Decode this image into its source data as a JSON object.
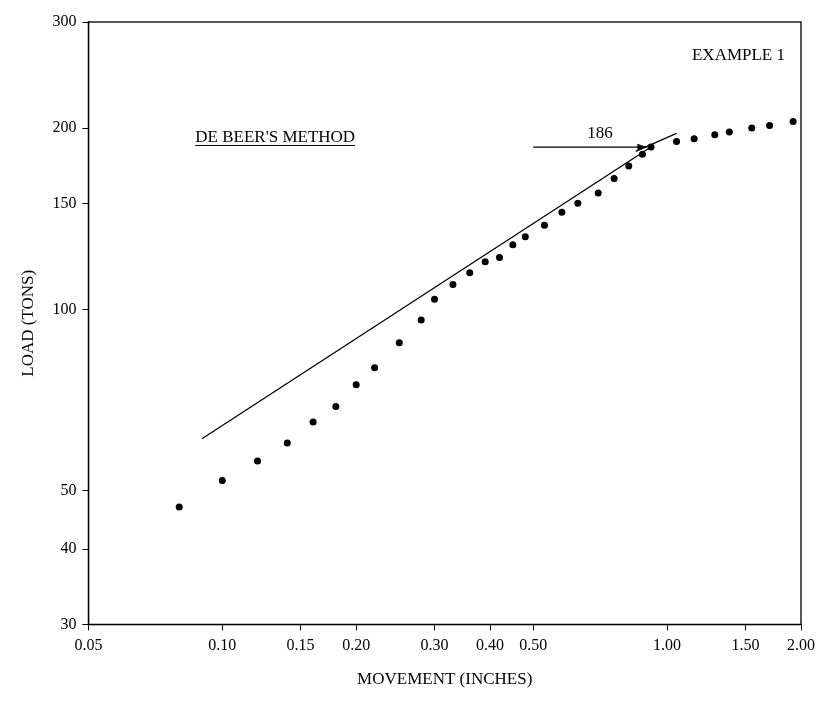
{
  "chart_data": {
    "type": "scatter",
    "title": "DE BEER'S METHOD",
    "annotation": "EXAMPLE 1",
    "x_label": "MOVEMENT (INCHES)",
    "y_label": "LOAD (TONS)",
    "log": true,
    "grid": false,
    "color": "#000000",
    "marker": "circle",
    "x": [
      0.08,
      0.1,
      0.12,
      0.14,
      0.16,
      0.18,
      0.2,
      0.22,
      0.25,
      0.28,
      0.3,
      0.33,
      0.36,
      0.39,
      0.42,
      0.45,
      0.48,
      0.53,
      0.58,
      0.63,
      0.7,
      0.76,
      0.82,
      0.88,
      0.92,
      1.05,
      1.15,
      1.28,
      1.38,
      1.55,
      1.7,
      1.92
    ],
    "values": [
      47,
      52,
      56,
      60,
      65,
      69,
      75,
      80,
      88,
      96,
      104,
      110,
      115,
      120,
      122,
      128,
      132,
      138,
      145,
      150,
      156,
      165,
      173,
      181,
      186,
      190,
      192,
      195,
      197,
      200,
      202,
      205
    ],
    "lines": [
      {
        "points": [
          [
            0.09,
            61
          ],
          [
            0.92,
            186
          ]
        ]
      },
      {
        "points": [
          [
            0.85,
            183
          ],
          [
            1.05,
            196
          ]
        ]
      }
    ],
    "arrow": {
      "from": [
        0.5,
        186
      ],
      "to": [
        0.9,
        186
      ],
      "label": "186"
    },
    "xlim": [
      0.05,
      2.0
    ],
    "xticks": [
      0.05,
      {
        "value": 0.1,
        "label": "0.10"
      },
      0.15,
      {
        "value": 0.2,
        "label": "0.20"
      },
      {
        "value": 0.3,
        "label": "0.30"
      },
      {
        "value": 0.4,
        "label": "0.40"
      },
      {
        "value": 0.5,
        "label": "0.50"
      },
      {
        "value": 1,
        "label": "1.00"
      },
      {
        "value": 1.5,
        "label": "1.50"
      },
      {
        "value": 2,
        "label": "2.00"
      }
    ],
    "ylim": [
      30,
      300
    ],
    "yticks": [
      30,
      40,
      50,
      100,
      150,
      200,
      300
    ]
  }
}
